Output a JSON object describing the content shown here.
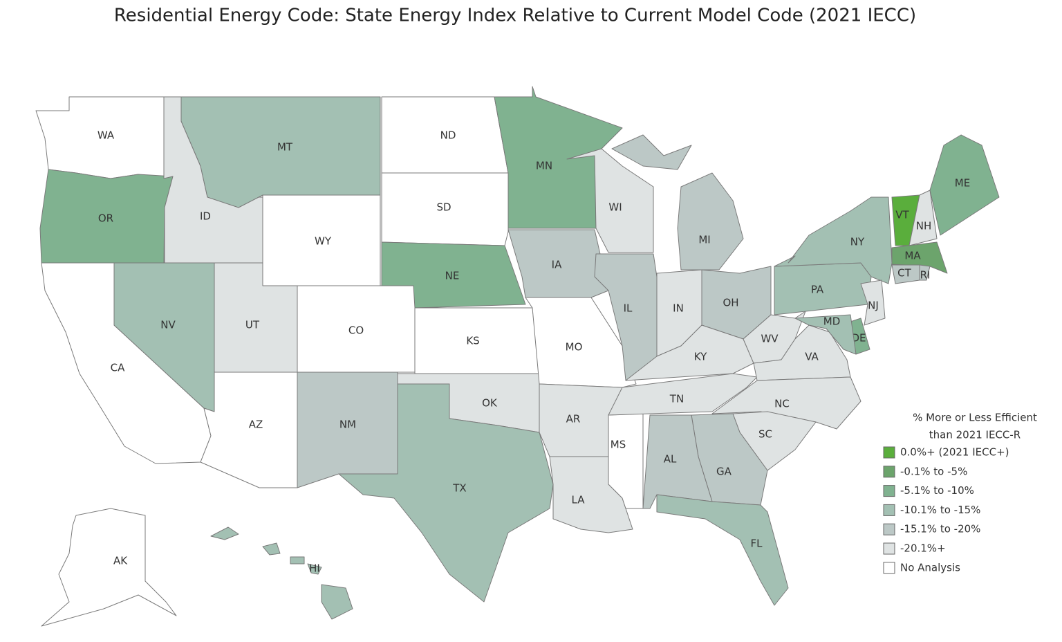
{
  "title": "Residential Energy Code: State Energy Index Relative to Current Model Code (2021 IECC)",
  "legend": {
    "title": [
      "% More or Less Efficient",
      "than 2021 IECC-R"
    ],
    "items": [
      {
        "label": "0.0%+ (2021 IECC+)",
        "color": "#5aae3c"
      },
      {
        "label": "-0.1% to -5%",
        "color": "#6ca46c"
      },
      {
        "label": "-5.1% to -10%",
        "color": "#80b290"
      },
      {
        "label": "-10.1% to -15%",
        "color": "#a3c0b3"
      },
      {
        "label": "-15.1% to -20%",
        "color": "#bcc8c6"
      },
      {
        "label": "-20.1%+",
        "color": "#dfe3e3"
      },
      {
        "label": "No Analysis",
        "color": "#ffffff"
      }
    ]
  },
  "states": [
    {
      "label": "WA",
      "color": "#ffffff"
    },
    {
      "label": "OR",
      "color": "#80b290"
    },
    {
      "label": "CA",
      "color": "#ffffff"
    },
    {
      "label": "NV",
      "color": "#a3c0b3"
    },
    {
      "label": "ID",
      "color": "#dfe3e3"
    },
    {
      "label": "MT",
      "color": "#a3c0b3"
    },
    {
      "label": "WY",
      "color": "#ffffff"
    },
    {
      "label": "UT",
      "color": "#dfe3e3"
    },
    {
      "label": "CO",
      "color": "#ffffff"
    },
    {
      "label": "AZ",
      "color": "#ffffff"
    },
    {
      "label": "NM",
      "color": "#bcc8c6"
    },
    {
      "label": "ND",
      "color": "#ffffff"
    },
    {
      "label": "SD",
      "color": "#ffffff"
    },
    {
      "label": "NE",
      "color": "#80b290"
    },
    {
      "label": "KS",
      "color": "#ffffff"
    },
    {
      "label": "OK",
      "color": "#dfe3e3"
    },
    {
      "label": "TX",
      "color": "#a3c0b3"
    },
    {
      "label": "MN",
      "color": "#80b290"
    },
    {
      "label": "IA",
      "color": "#bcc8c6"
    },
    {
      "label": "MO",
      "color": "#ffffff"
    },
    {
      "label": "AR",
      "color": "#dfe3e3"
    },
    {
      "label": "LA",
      "color": "#dfe3e3"
    },
    {
      "label": "MS",
      "color": "#ffffff"
    },
    {
      "label": "WI",
      "color": "#dfe3e3"
    },
    {
      "label": "MI",
      "color": "#bcc8c6"
    },
    {
      "label": "IL",
      "color": "#bcc8c6"
    },
    {
      "label": "IN",
      "color": "#dfe3e3"
    },
    {
      "label": "OH",
      "color": "#bcc8c6"
    },
    {
      "label": "KY",
      "color": "#dfe3e3"
    },
    {
      "label": "TN",
      "color": "#dfe3e3"
    },
    {
      "label": "WV",
      "color": "#dfe3e3"
    },
    {
      "label": "VA",
      "color": "#dfe3e3"
    },
    {
      "label": "NC",
      "color": "#dfe3e3"
    },
    {
      "label": "SC",
      "color": "#dfe3e3"
    },
    {
      "label": "GA",
      "color": "#bcc8c6"
    },
    {
      "label": "AL",
      "color": "#bcc8c6"
    },
    {
      "label": "FL",
      "color": "#a3c0b3"
    },
    {
      "label": "PA",
      "color": "#a3c0b3"
    },
    {
      "label": "NY",
      "color": "#a3c0b3"
    },
    {
      "label": "NJ",
      "color": "#dfe3e3"
    },
    {
      "label": "DE",
      "color": "#80b290"
    },
    {
      "label": "MD",
      "color": "#a3c0b3"
    },
    {
      "label": "VT",
      "color": "#5aae3c"
    },
    {
      "label": "NH",
      "color": "#dfe3e3"
    },
    {
      "label": "ME",
      "color": "#80b290"
    },
    {
      "label": "MA",
      "color": "#6ca46c"
    },
    {
      "label": "CT",
      "color": "#bcc8c6"
    },
    {
      "label": "RI",
      "color": "#bcc8c6"
    },
    {
      "label": "AK",
      "color": "#ffffff"
    },
    {
      "label": "HI",
      "color": "#a3c0b3"
    }
  ]
}
